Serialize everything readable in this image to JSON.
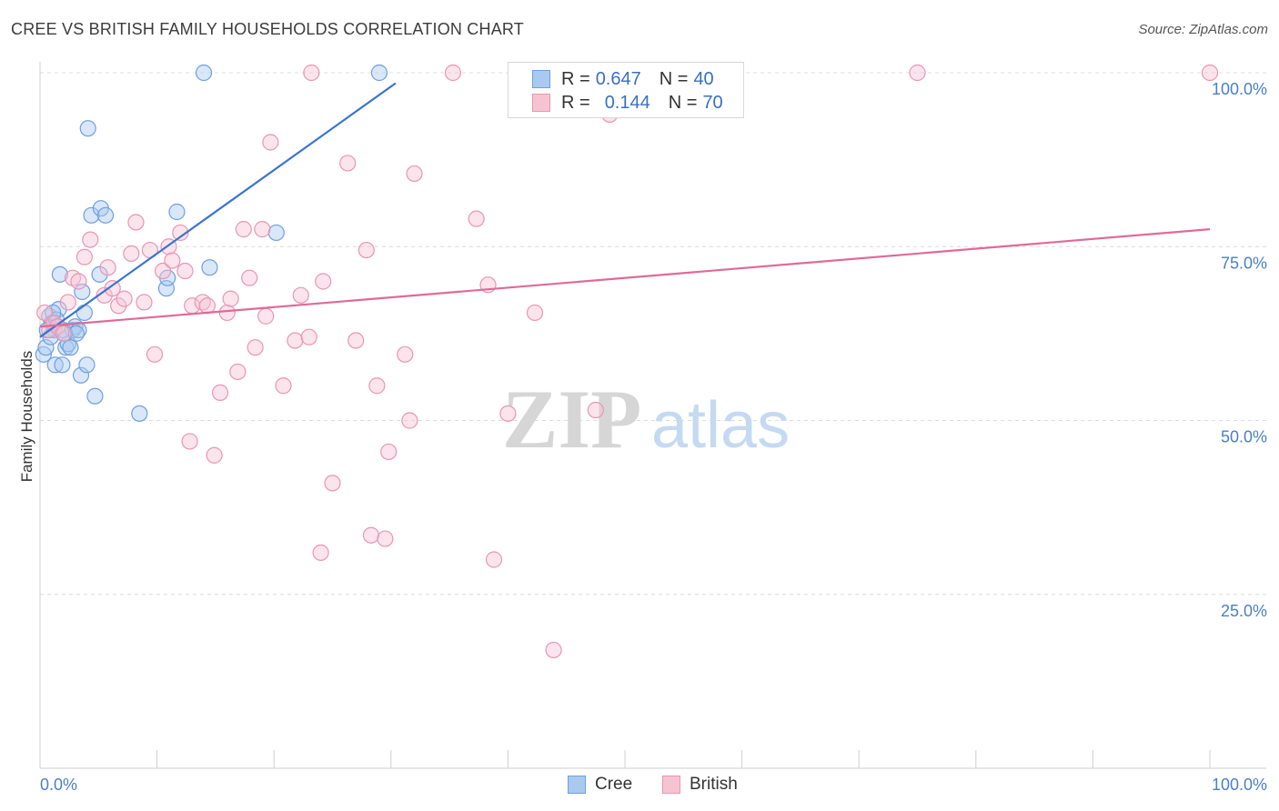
{
  "title": "CREE VS BRITISH FAMILY HOUSEHOLDS CORRELATION CHART",
  "source": "Source: ZipAtlas.com",
  "watermark": {
    "zip": "ZIP",
    "atlas": "atlas"
  },
  "legend": {
    "rows": [
      {
        "r_label": "R =",
        "r_value": "0.647",
        "n_label": "N =",
        "n_value": "40",
        "color": "#aac9f0",
        "stroke": "#6e9fe0"
      },
      {
        "r_label": "R =",
        "r_value": "0.144",
        "n_label": "N =",
        "n_value": "70",
        "color": "#f7c3d3",
        "stroke": "#e896b2"
      }
    ]
  },
  "bottom_legend": [
    {
      "label": "Cree",
      "color": "#aac9f0",
      "stroke": "#6e9fe0"
    },
    {
      "label": "British",
      "color": "#f7c3d3",
      "stroke": "#e896b2"
    }
  ],
  "chart_data": {
    "type": "scatter",
    "title": "CREE VS BRITISH FAMILY HOUSEHOLDS CORRELATION CHART",
    "xlabel": "",
    "ylabel": "Family Households",
    "xlim": [
      0,
      100
    ],
    "ylim": [
      0,
      100
    ],
    "x_tick_labels": [
      {
        "value": 0,
        "label": "0.0%"
      },
      {
        "value": 100,
        "label": "100.0%"
      }
    ],
    "y_tick_labels": [
      {
        "value": 25,
        "label": "25.0%"
      },
      {
        "value": 50,
        "label": "50.0%"
      },
      {
        "value": 75,
        "label": "75.0%"
      },
      {
        "value": 100,
        "label": "100.0%"
      }
    ],
    "grid": "horizontal-dashed",
    "series": [
      {
        "name": "Cree",
        "color": "#6e9fe0",
        "fill": "#aac9f0",
        "trend": {
          "x": [
            0,
            30.4
          ],
          "y": [
            62,
            98.5
          ],
          "color": "#3a74d0"
        },
        "points": [
          [
            0.3,
            59.5
          ],
          [
            0.5,
            60.5
          ],
          [
            0.8,
            65
          ],
          [
            1.0,
            64
          ],
          [
            1.2,
            63
          ],
          [
            1.3,
            58
          ],
          [
            1.6,
            66
          ],
          [
            1.7,
            71
          ],
          [
            1.9,
            58
          ],
          [
            2.0,
            63
          ],
          [
            2.2,
            60.5
          ],
          [
            2.4,
            61
          ],
          [
            2.6,
            60.5
          ],
          [
            2.8,
            63
          ],
          [
            3.0,
            63.5
          ],
          [
            3.3,
            63
          ],
          [
            3.5,
            56.5
          ],
          [
            3.6,
            68.5
          ],
          [
            3.8,
            65.5
          ],
          [
            4.0,
            58
          ],
          [
            4.1,
            92
          ],
          [
            4.4,
            79.5
          ],
          [
            4.7,
            53.5
          ],
          [
            5.1,
            71
          ],
          [
            5.2,
            80.5
          ],
          [
            5.6,
            79.5
          ],
          [
            8.5,
            51
          ],
          [
            10.8,
            69
          ],
          [
            10.9,
            70.5
          ],
          [
            11.7,
            80
          ],
          [
            14.0,
            100
          ],
          [
            14.5,
            72
          ],
          [
            20.2,
            77
          ],
          [
            29.0,
            100
          ],
          [
            0.6,
            63
          ],
          [
            1.4,
            64.5
          ],
          [
            2.1,
            62.5
          ],
          [
            3.1,
            62.5
          ],
          [
            0.9,
            62
          ],
          [
            1.1,
            65.5
          ]
        ]
      },
      {
        "name": "British",
        "color": "#e896b2",
        "fill": "#f7c3d3",
        "trend": {
          "x": [
            0,
            100
          ],
          "y": [
            63.5,
            77.5
          ],
          "color": "#e06a98"
        },
        "points": [
          [
            0.4,
            65.5
          ],
          [
            0.8,
            63
          ],
          [
            1.2,
            64
          ],
          [
            1.5,
            63.5
          ],
          [
            2.0,
            62.5
          ],
          [
            2.4,
            67
          ],
          [
            2.8,
            70.5
          ],
          [
            3.3,
            70
          ],
          [
            3.8,
            73.5
          ],
          [
            4.3,
            76
          ],
          [
            5.5,
            68
          ],
          [
            5.8,
            72
          ],
          [
            6.2,
            69
          ],
          [
            6.7,
            66.5
          ],
          [
            7.2,
            67.5
          ],
          [
            7.8,
            74
          ],
          [
            8.2,
            78.5
          ],
          [
            8.9,
            67
          ],
          [
            9.4,
            74.5
          ],
          [
            9.8,
            59.5
          ],
          [
            10.5,
            71.5
          ],
          [
            11.0,
            75
          ],
          [
            11.3,
            73
          ],
          [
            12.0,
            77
          ],
          [
            12.4,
            71.5
          ],
          [
            12.8,
            47
          ],
          [
            13.0,
            66.5
          ],
          [
            13.9,
            67
          ],
          [
            14.3,
            66.5
          ],
          [
            14.9,
            45
          ],
          [
            15.4,
            54
          ],
          [
            16.0,
            65.5
          ],
          [
            16.3,
            67.5
          ],
          [
            16.9,
            57
          ],
          [
            17.4,
            77.5
          ],
          [
            17.9,
            70.5
          ],
          [
            18.4,
            60.5
          ],
          [
            19.0,
            77.5
          ],
          [
            19.3,
            65
          ],
          [
            19.7,
            90
          ],
          [
            20.8,
            55
          ],
          [
            21.8,
            61.5
          ],
          [
            22.3,
            68
          ],
          [
            23.0,
            62
          ],
          [
            23.2,
            100
          ],
          [
            24.0,
            31
          ],
          [
            24.2,
            70
          ],
          [
            25.0,
            41
          ],
          [
            26.3,
            87
          ],
          [
            27.0,
            61.5
          ],
          [
            27.9,
            74.5
          ],
          [
            28.3,
            33.5
          ],
          [
            28.8,
            55
          ],
          [
            29.5,
            33
          ],
          [
            29.8,
            45.5
          ],
          [
            31.2,
            59.5
          ],
          [
            31.6,
            50
          ],
          [
            32.0,
            85.5
          ],
          [
            35.3,
            100
          ],
          [
            37.3,
            79
          ],
          [
            38.3,
            69.5
          ],
          [
            38.8,
            30
          ],
          [
            40.0,
            51
          ],
          [
            42.3,
            65.5
          ],
          [
            43.9,
            17
          ],
          [
            47.5,
            51.5
          ],
          [
            48.7,
            94
          ],
          [
            50.0,
            100
          ],
          [
            75.0,
            100
          ],
          [
            100.0,
            100
          ]
        ]
      }
    ]
  }
}
